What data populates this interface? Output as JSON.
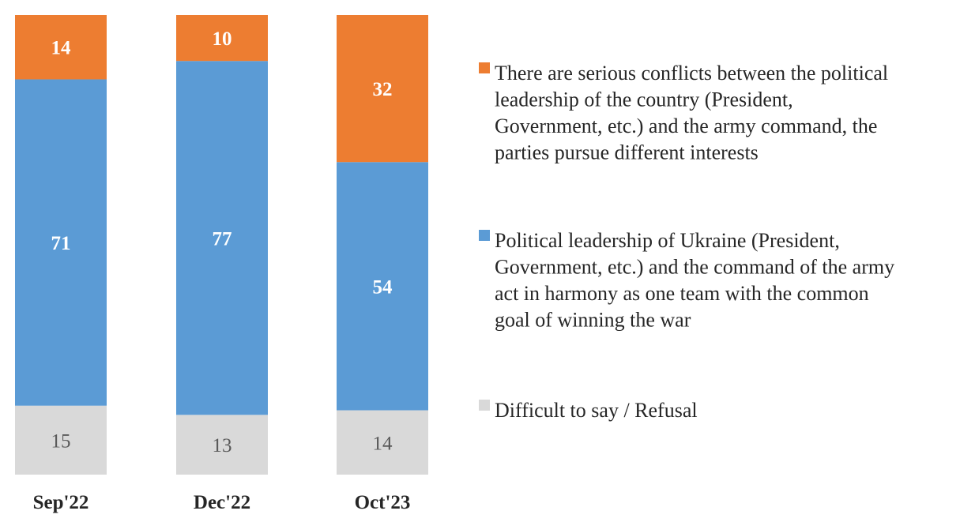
{
  "chart_data": {
    "type": "bar",
    "stacked": true,
    "categories": [
      "Sep'22",
      "Dec'22",
      "Oct'23"
    ],
    "series": [
      {
        "name": "Difficult to say / Refusal",
        "color": "#d9d9d9",
        "label_color": "#595959",
        "values": [
          15,
          13,
          14
        ]
      },
      {
        "name": "Political leadership of Ukraine (President, Government, etc.) and the command of the army act in harmony as one team with the common goal of winning the war",
        "color": "#5b9bd5",
        "label_color": "#ffffff",
        "values": [
          71,
          77,
          54
        ]
      },
      {
        "name": "There are serious conflicts between the political leadership of the country (President, Government, etc.) and the army command, the parties pursue different interests",
        "color": "#ed7d31",
        "label_color": "#ffffff",
        "values": [
          14,
          10,
          32
        ]
      }
    ],
    "ylim": [
      0,
      100
    ],
    "grid": false,
    "legend": "right",
    "title": "",
    "xlabel": "",
    "ylabel": ""
  },
  "legend": {
    "items": [
      {
        "lines": [
          "There are serious conflicts between the political",
          "leadership of the country (President,",
          "Government, etc.) and the army command, the",
          "parties pursue different interests"
        ]
      },
      {
        "lines": [
          "Political leadership of Ukraine (President,",
          "Government, etc.) and the command of the army",
          "act in harmony as one team with the common",
          "goal of winning the war"
        ]
      },
      {
        "lines": [
          "Difficult to say / Refusal"
        ]
      }
    ]
  }
}
